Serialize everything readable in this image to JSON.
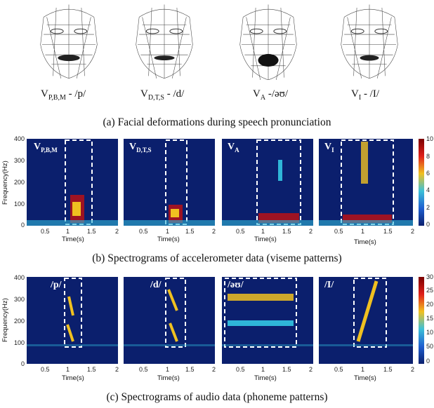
{
  "faces": [
    {
      "label_main": "V",
      "label_sub": "P,B,M",
      "label_rest": " - /p/"
    },
    {
      "label_main": "V",
      "label_sub": "D,T,S",
      "label_rest": " - /d/"
    },
    {
      "label_main": "V",
      "label_sub": "A",
      "label_rest": " -/əʊ/"
    },
    {
      "label_main": "V",
      "label_sub": "I",
      "label_rest": " - /I/"
    }
  ],
  "captions": {
    "a": "(a) Facial deformations during speech pronunciation",
    "b": "(b) Spectrograms of accelerometer data (viseme patterns)",
    "c": "(c) Spectrograms of audio data (phoneme patterns)"
  },
  "axis": {
    "ylabel": "Frequency(Hz)",
    "xlabel": "Time(s)",
    "yticks": [
      "400",
      "300",
      "200",
      "100",
      "0"
    ],
    "xticks": [
      "0.5",
      "1",
      "1.5",
      "2"
    ]
  },
  "accel_panels": [
    {
      "main": "V",
      "sub": "P,B,M"
    },
    {
      "main": "V",
      "sub": "D,T,S"
    },
    {
      "main": "V",
      "sub": "A"
    },
    {
      "main": "V",
      "sub": "I"
    }
  ],
  "audio_panels": [
    {
      "label": "/p/"
    },
    {
      "label": "/d/"
    },
    {
      "label": "/əʊ/"
    },
    {
      "label": "/I/"
    }
  ],
  "colorbar_b": {
    "ticks": [
      "10",
      "8",
      "6",
      "4",
      "2",
      "0"
    ]
  },
  "colorbar_c": {
    "ticks": [
      "30",
      "25",
      "20",
      "15",
      "10",
      "50",
      "0"
    ]
  },
  "colors": {
    "background": "#0b1f6d",
    "hot": "#c21010",
    "warm": "#f0c020",
    "cool": "#2fb6d8"
  }
}
